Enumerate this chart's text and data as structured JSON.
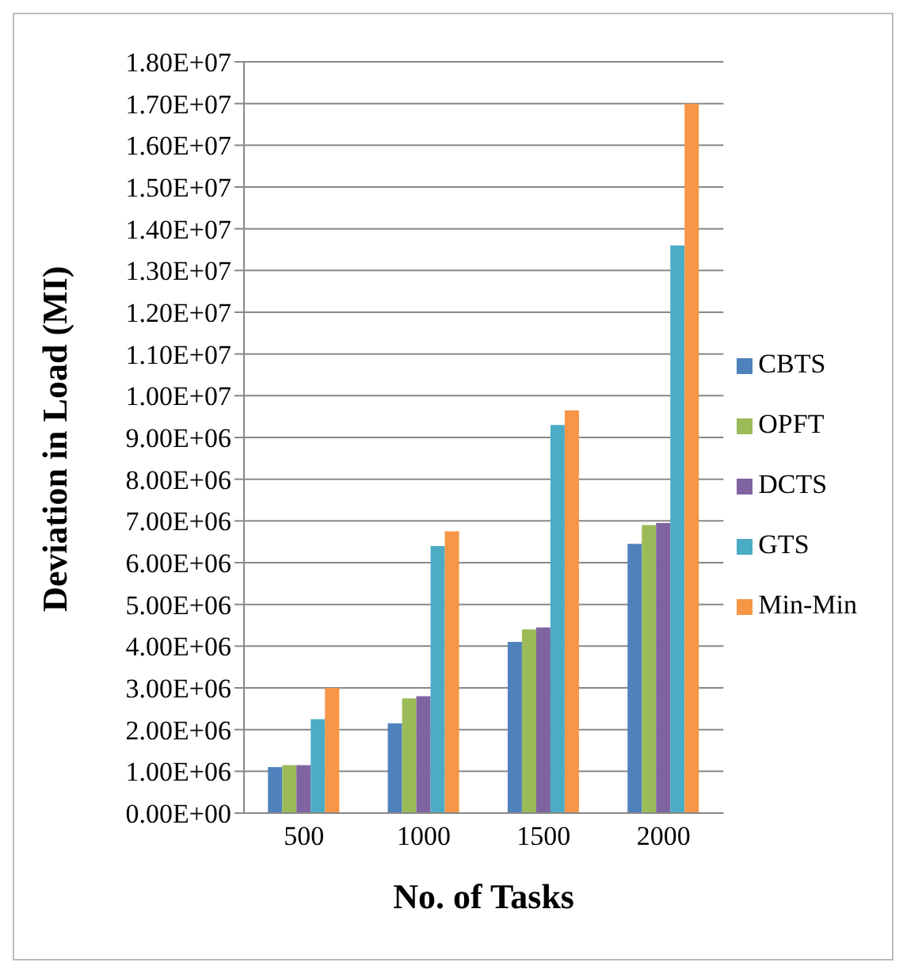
{
  "chart_data": {
    "type": "bar",
    "xlabel": "No. of Tasks",
    "ylabel": "Deviation in Load (MI)",
    "categories": [
      "500",
      "1000",
      "1500",
      "2000"
    ],
    "series": [
      {
        "name": "CBTS",
        "color": "#4f81bd",
        "values": [
          1100000,
          2150000,
          4100000,
          6450000
        ]
      },
      {
        "name": "OPFT",
        "color": "#9bbb59",
        "values": [
          1150000,
          2750000,
          4400000,
          6900000
        ]
      },
      {
        "name": "DCTS",
        "color": "#8064a2",
        "values": [
          1150000,
          2800000,
          4450000,
          6950000
        ]
      },
      {
        "name": "GTS",
        "color": "#4bacc6",
        "values": [
          2250000,
          6400000,
          9300000,
          13600000
        ]
      },
      {
        "name": "Min-Min",
        "color": "#f79646",
        "values": [
          3000000,
          6750000,
          9650000,
          17000000
        ]
      }
    ],
    "ylim": [
      0,
      18000000
    ],
    "yticks": [
      {
        "value": 0,
        "label": "0.00E+00"
      },
      {
        "value": 1000000,
        "label": "1.00E+06"
      },
      {
        "value": 2000000,
        "label": "2.00E+06"
      },
      {
        "value": 3000000,
        "label": "3.00E+06"
      },
      {
        "value": 4000000,
        "label": "4.00E+06"
      },
      {
        "value": 5000000,
        "label": "5.00E+06"
      },
      {
        "value": 6000000,
        "label": "6.00E+06"
      },
      {
        "value": 7000000,
        "label": "7.00E+06"
      },
      {
        "value": 8000000,
        "label": "8.00E+06"
      },
      {
        "value": 9000000,
        "label": "9.00E+06"
      },
      {
        "value": 10000000,
        "label": "1.00E+07"
      },
      {
        "value": 11000000,
        "label": "1.10E+07"
      },
      {
        "value": 12000000,
        "label": "1.20E+07"
      },
      {
        "value": 13000000,
        "label": "1.30E+07"
      },
      {
        "value": 14000000,
        "label": "1.40E+07"
      },
      {
        "value": 15000000,
        "label": "1.50E+07"
      },
      {
        "value": 16000000,
        "label": "1.60E+07"
      },
      {
        "value": 17000000,
        "label": "1.70E+07"
      },
      {
        "value": 18000000,
        "label": "1.80E+07"
      }
    ],
    "grid": "y",
    "legend": "right"
  }
}
